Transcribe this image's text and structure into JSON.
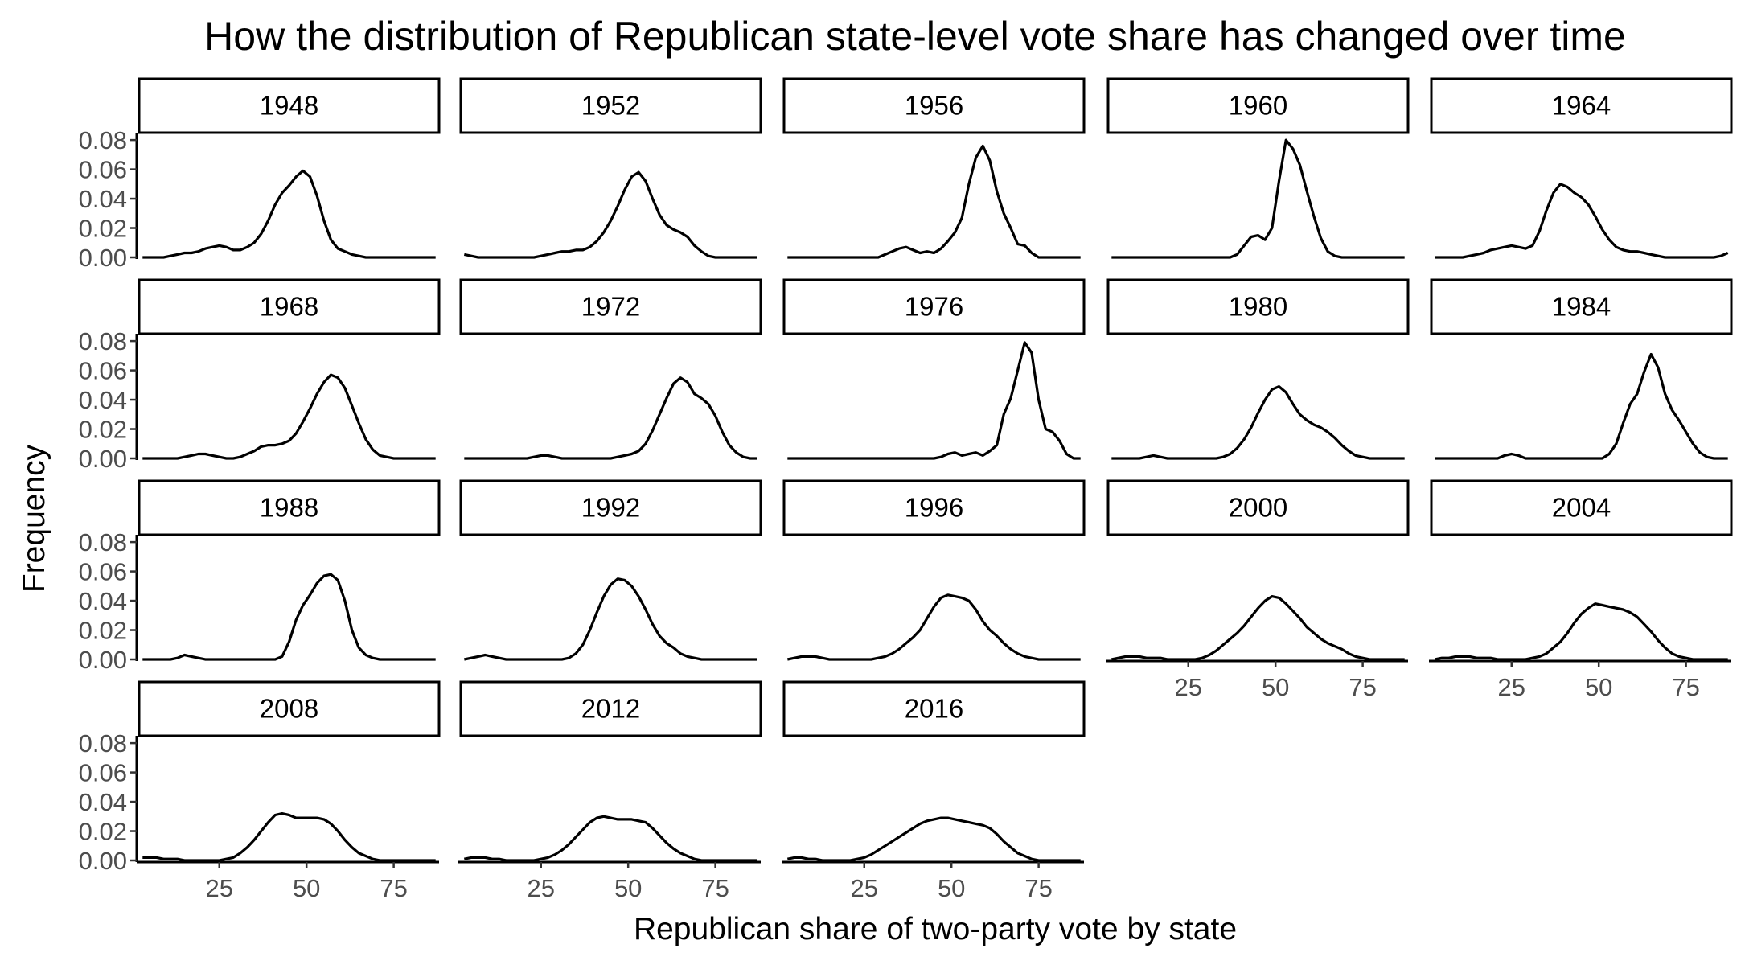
{
  "chart_data": {
    "type": "area",
    "title": "How the distribution of Republican state-level vote share has changed over time",
    "xlabel": "Republican share of two-party vote by state",
    "ylabel": "Frequency",
    "xlim": [
      2,
      88
    ],
    "ylim": [
      0,
      0.085
    ],
    "x_ticks": [
      25,
      50,
      75
    ],
    "x_tick_labels": [
      "25",
      "50",
      "75"
    ],
    "y_ticks": [
      0,
      0.02,
      0.04,
      0.06,
      0.08
    ],
    "y_tick_labels": [
      "0.00",
      "0.02",
      "0.04",
      "0.06",
      "0.08"
    ],
    "grid": false,
    "facet_columns": 5,
    "x": [
      3,
      5,
      7,
      9,
      11,
      13,
      15,
      17,
      19,
      21,
      23,
      25,
      27,
      29,
      31,
      33,
      35,
      37,
      39,
      41,
      43,
      45,
      47,
      49,
      51,
      53,
      55,
      57,
      59,
      61,
      63,
      65,
      67,
      69,
      71,
      73,
      75,
      77,
      79,
      81,
      83,
      85,
      87
    ],
    "series": [
      {
        "name": "1948",
        "values": [
          0,
          0,
          0,
          0,
          0.001,
          0.002,
          0.003,
          0.003,
          0.004,
          0.006,
          0.007,
          0.008,
          0.007,
          0.005,
          0.005,
          0.007,
          0.01,
          0.016,
          0.025,
          0.036,
          0.044,
          0.049,
          0.055,
          0.059,
          0.055,
          0.042,
          0.025,
          0.012,
          0.006,
          0.004,
          0.002,
          0.001,
          0,
          0,
          0,
          0,
          0,
          0,
          0,
          0,
          0,
          0,
          0
        ]
      },
      {
        "name": "1952",
        "values": [
          0.002,
          0.001,
          0,
          0,
          0,
          0,
          0,
          0,
          0,
          0,
          0,
          0.001,
          0.002,
          0.003,
          0.004,
          0.004,
          0.005,
          0.005,
          0.007,
          0.011,
          0.017,
          0.025,
          0.035,
          0.046,
          0.055,
          0.058,
          0.052,
          0.04,
          0.029,
          0.022,
          0.019,
          0.017,
          0.014,
          0.008,
          0.004,
          0.001,
          0,
          0,
          0,
          0,
          0,
          0,
          0
        ]
      },
      {
        "name": "1956",
        "values": [
          0,
          0,
          0,
          0,
          0,
          0,
          0,
          0,
          0,
          0,
          0,
          0,
          0,
          0,
          0.002,
          0.004,
          0.006,
          0.007,
          0.005,
          0.003,
          0.004,
          0.003,
          0.006,
          0.011,
          0.017,
          0.027,
          0.05,
          0.068,
          0.076,
          0.066,
          0.045,
          0.03,
          0.02,
          0.009,
          0.008,
          0.003,
          0,
          0,
          0,
          0,
          0,
          0,
          0
        ]
      },
      {
        "name": "1960",
        "values": [
          0,
          0,
          0,
          0,
          0,
          0,
          0,
          0,
          0,
          0,
          0,
          0,
          0,
          0,
          0,
          0,
          0,
          0,
          0.002,
          0.008,
          0.014,
          0.015,
          0.012,
          0.02,
          0.052,
          0.08,
          0.074,
          0.063,
          0.045,
          0.028,
          0.013,
          0.004,
          0.001,
          0,
          0,
          0,
          0,
          0,
          0,
          0,
          0,
          0,
          0
        ]
      },
      {
        "name": "1964",
        "values": [
          0,
          0,
          0,
          0,
          0,
          0.001,
          0.002,
          0.003,
          0.005,
          0.006,
          0.007,
          0.008,
          0.007,
          0.006,
          0.008,
          0.018,
          0.032,
          0.044,
          0.05,
          0.048,
          0.044,
          0.041,
          0.036,
          0.028,
          0.019,
          0.012,
          0.007,
          0.005,
          0.004,
          0.004,
          0.003,
          0.002,
          0.001,
          0,
          0,
          0,
          0,
          0,
          0,
          0,
          0,
          0.001,
          0.003
        ]
      },
      {
        "name": "1968",
        "values": [
          0,
          0,
          0,
          0,
          0,
          0,
          0.001,
          0.002,
          0.003,
          0.003,
          0.002,
          0.001,
          0,
          0,
          0.001,
          0.003,
          0.005,
          0.008,
          0.009,
          0.009,
          0.01,
          0.012,
          0.017,
          0.025,
          0.034,
          0.044,
          0.052,
          0.057,
          0.055,
          0.048,
          0.036,
          0.024,
          0.013,
          0.006,
          0.002,
          0.001,
          0,
          0,
          0,
          0,
          0,
          0,
          0
        ]
      },
      {
        "name": "1972",
        "values": [
          0,
          0,
          0,
          0,
          0,
          0,
          0,
          0,
          0,
          0,
          0.001,
          0.002,
          0.002,
          0.001,
          0,
          0,
          0,
          0,
          0,
          0,
          0,
          0,
          0.001,
          0.002,
          0.003,
          0.005,
          0.01,
          0.019,
          0.03,
          0.041,
          0.051,
          0.055,
          0.052,
          0.044,
          0.041,
          0.037,
          0.029,
          0.018,
          0.009,
          0.004,
          0.001,
          0,
          0
        ]
      },
      {
        "name": "1976",
        "values": [
          0,
          0,
          0,
          0,
          0,
          0,
          0,
          0,
          0,
          0,
          0,
          0,
          0,
          0,
          0,
          0,
          0,
          0,
          0,
          0,
          0,
          0,
          0.001,
          0.003,
          0.004,
          0.002,
          0.003,
          0.004,
          0.002,
          0.005,
          0.009,
          0.03,
          0.041,
          0.06,
          0.079,
          0.072,
          0.04,
          0.02,
          0.018,
          0.012,
          0.003,
          0,
          0
        ]
      },
      {
        "name": "1980",
        "values": [
          0,
          0,
          0,
          0,
          0,
          0.001,
          0.002,
          0.001,
          0,
          0,
          0,
          0,
          0,
          0,
          0,
          0,
          0.001,
          0.003,
          0.007,
          0.013,
          0.021,
          0.031,
          0.04,
          0.047,
          0.049,
          0.045,
          0.037,
          0.03,
          0.026,
          0.023,
          0.021,
          0.018,
          0.014,
          0.009,
          0.005,
          0.002,
          0.001,
          0,
          0,
          0,
          0,
          0,
          0
        ]
      },
      {
        "name": "1984",
        "values": [
          0,
          0,
          0,
          0,
          0,
          0,
          0,
          0,
          0,
          0,
          0.002,
          0.003,
          0.002,
          0,
          0,
          0,
          0,
          0,
          0,
          0,
          0,
          0,
          0,
          0,
          0,
          0.003,
          0.01,
          0.024,
          0.037,
          0.044,
          0.059,
          0.071,
          0.062,
          0.044,
          0.033,
          0.026,
          0.018,
          0.01,
          0.004,
          0.001,
          0,
          0,
          0
        ]
      },
      {
        "name": "1988",
        "values": [
          0,
          0,
          0,
          0,
          0,
          0.001,
          0.003,
          0.002,
          0.001,
          0,
          0,
          0,
          0,
          0,
          0,
          0,
          0,
          0,
          0,
          0,
          0.002,
          0.012,
          0.027,
          0.037,
          0.044,
          0.052,
          0.057,
          0.058,
          0.054,
          0.04,
          0.02,
          0.008,
          0.003,
          0.001,
          0,
          0,
          0,
          0,
          0,
          0,
          0,
          0,
          0
        ]
      },
      {
        "name": "1992",
        "values": [
          0,
          0.001,
          0.002,
          0.003,
          0.002,
          0.001,
          0,
          0,
          0,
          0,
          0,
          0,
          0,
          0,
          0,
          0.001,
          0.004,
          0.01,
          0.02,
          0.032,
          0.043,
          0.051,
          0.055,
          0.054,
          0.05,
          0.043,
          0.034,
          0.024,
          0.016,
          0.011,
          0.008,
          0.004,
          0.002,
          0.001,
          0,
          0,
          0,
          0,
          0,
          0,
          0,
          0,
          0
        ]
      },
      {
        "name": "1996",
        "values": [
          0,
          0.001,
          0.002,
          0.002,
          0.002,
          0.001,
          0,
          0,
          0,
          0,
          0,
          0,
          0,
          0.001,
          0.002,
          0.004,
          0.007,
          0.011,
          0.015,
          0.02,
          0.028,
          0.036,
          0.042,
          0.044,
          0.043,
          0.042,
          0.04,
          0.034,
          0.026,
          0.02,
          0.016,
          0.011,
          0.007,
          0.004,
          0.002,
          0.001,
          0,
          0,
          0,
          0,
          0,
          0,
          0
        ]
      },
      {
        "name": "2000",
        "values": [
          0,
          0.001,
          0.002,
          0.002,
          0.002,
          0.001,
          0.001,
          0.001,
          0,
          0,
          0,
          0,
          0,
          0.001,
          0.003,
          0.006,
          0.01,
          0.014,
          0.018,
          0.023,
          0.029,
          0.035,
          0.04,
          0.043,
          0.042,
          0.038,
          0.033,
          0.028,
          0.022,
          0.018,
          0.014,
          0.011,
          0.009,
          0.007,
          0.004,
          0.002,
          0.001,
          0,
          0,
          0,
          0,
          0,
          0
        ]
      },
      {
        "name": "2004",
        "values": [
          0,
          0.001,
          0.001,
          0.002,
          0.002,
          0.002,
          0.001,
          0.001,
          0.001,
          0,
          0,
          0,
          0,
          0,
          0.001,
          0.002,
          0.004,
          0.008,
          0.012,
          0.018,
          0.025,
          0.031,
          0.035,
          0.038,
          0.037,
          0.036,
          0.035,
          0.034,
          0.032,
          0.029,
          0.024,
          0.019,
          0.013,
          0.008,
          0.004,
          0.002,
          0.001,
          0,
          0,
          0,
          0,
          0,
          0
        ]
      },
      {
        "name": "2008",
        "values": [
          0.002,
          0.002,
          0.002,
          0.001,
          0.001,
          0.001,
          0,
          0,
          0,
          0,
          0,
          0,
          0.001,
          0.002,
          0.005,
          0.009,
          0.014,
          0.02,
          0.026,
          0.031,
          0.032,
          0.031,
          0.029,
          0.029,
          0.029,
          0.029,
          0.028,
          0.025,
          0.02,
          0.014,
          0.009,
          0.005,
          0.003,
          0.001,
          0,
          0,
          0,
          0,
          0,
          0,
          0,
          0,
          0
        ]
      },
      {
        "name": "2012",
        "values": [
          0.001,
          0.002,
          0.002,
          0.002,
          0.001,
          0.001,
          0,
          0,
          0,
          0,
          0,
          0.001,
          0.002,
          0.004,
          0.007,
          0.011,
          0.016,
          0.021,
          0.026,
          0.029,
          0.03,
          0.029,
          0.028,
          0.028,
          0.028,
          0.027,
          0.026,
          0.022,
          0.017,
          0.012,
          0.008,
          0.005,
          0.003,
          0.001,
          0,
          0,
          0,
          0,
          0,
          0,
          0,
          0,
          0
        ]
      },
      {
        "name": "2016",
        "values": [
          0.001,
          0.002,
          0.002,
          0.001,
          0.001,
          0,
          0,
          0,
          0,
          0,
          0.001,
          0.002,
          0.004,
          0.007,
          0.01,
          0.013,
          0.016,
          0.019,
          0.022,
          0.025,
          0.027,
          0.028,
          0.029,
          0.029,
          0.028,
          0.027,
          0.026,
          0.025,
          0.024,
          0.022,
          0.018,
          0.013,
          0.009,
          0.005,
          0.003,
          0.001,
          0,
          0,
          0,
          0,
          0,
          0,
          0
        ]
      }
    ]
  }
}
